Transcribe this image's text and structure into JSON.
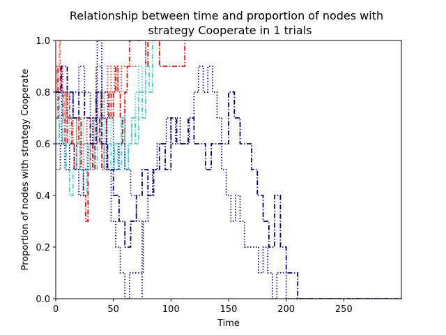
{
  "chart_data": {
    "type": "line",
    "title_line1": "Relationship between time and proportion of nodes with",
    "title_line2": "strategy Cooperate in 1 trials",
    "xlabel": "Time",
    "ylabel": "Proportion of nodes with strategy Cooperate",
    "xlim": [
      0,
      300
    ],
    "ylim": [
      0.0,
      1.0
    ],
    "xticks": [
      0,
      50,
      100,
      150,
      200,
      250
    ],
    "yticks": [
      0.0,
      0.2,
      0.4,
      0.6,
      0.8,
      1.0
    ],
    "xtick_labels": [
      "0",
      "50",
      "100",
      "150",
      "200",
      "250"
    ],
    "ytick_labels": [
      "0.0",
      "0.2",
      "0.4",
      "0.6",
      "0.8",
      "1.0"
    ],
    "grid": false,
    "legend": "none",
    "series": [
      {
        "color": "#ff0000",
        "style": "dashdot",
        "x": [
          0,
          2,
          4,
          6,
          8,
          10,
          12,
          14,
          16,
          18,
          20,
          22,
          24,
          26,
          28,
          30,
          32,
          34,
          36,
          38,
          40,
          42,
          44,
          46,
          48,
          50,
          52,
          54,
          56,
          58,
          60,
          62,
          64,
          66,
          68,
          70,
          72,
          74,
          76,
          78,
          80,
          85,
          90,
          95,
          100,
          105,
          110,
          112
        ],
        "y": [
          0.7,
          0.9,
          0.8,
          0.7,
          0.6,
          0.8,
          0.7,
          0.6,
          0.5,
          0.6,
          0.7,
          0.5,
          0.4,
          0.3,
          0.5,
          0.6,
          0.5,
          0.6,
          0.7,
          0.6,
          0.5,
          0.6,
          0.7,
          0.8,
          0.7,
          0.8,
          0.9,
          0.8,
          0.7,
          0.6,
          0.8,
          0.9,
          1.0,
          1.0,
          1.0,
          1.0,
          1.0,
          1.0,
          1.0,
          0.9,
          1.0,
          1.0,
          0.9,
          0.9,
          0.9,
          0.9,
          0.9,
          1.0
        ]
      },
      {
        "color": "#ff2222",
        "style": "dotted",
        "x": [
          0,
          3,
          6,
          9,
          12,
          15,
          18,
          21,
          24,
          27,
          30,
          33,
          36,
          39,
          42,
          45,
          48,
          51,
          54,
          57,
          60,
          63,
          66,
          69,
          72,
          75
        ],
        "y": [
          0.9,
          0.9,
          0.8,
          0.7,
          0.6,
          0.7,
          0.6,
          0.5,
          0.6,
          0.7,
          0.6,
          0.7,
          0.8,
          0.7,
          0.8,
          0.9,
          0.8,
          0.9,
          0.8,
          0.9,
          0.9,
          0.9,
          0.9,
          0.9,
          0.9,
          0.9
        ]
      },
      {
        "color": "#ff8877",
        "style": "dashdot",
        "x": [
          0,
          1,
          2,
          3,
          4,
          5,
          6,
          7,
          8,
          9,
          10
        ],
        "y": [
          0.8,
          0.9,
          0.9,
          1.0,
          0.9,
          0.8,
          0.8,
          0.7,
          0.8,
          0.7,
          0.8
        ]
      },
      {
        "color": "#40d0d0",
        "style": "dashdot",
        "x": [
          0,
          3,
          6,
          9,
          12,
          15,
          18,
          21,
          24,
          27,
          30,
          33,
          36,
          39,
          42,
          45,
          48,
          51,
          54,
          57,
          60,
          63,
          66,
          69,
          72,
          75,
          78,
          81,
          84
        ],
        "y": [
          0.6,
          0.8,
          0.6,
          0.5,
          0.4,
          0.5,
          0.6,
          0.5,
          0.4,
          0.5,
          0.6,
          0.5,
          0.7,
          0.6,
          0.5,
          0.6,
          0.5,
          0.6,
          0.5,
          0.7,
          0.5,
          0.6,
          0.7,
          0.6,
          0.8,
          0.7,
          0.9,
          0.8,
          1.0
        ]
      },
      {
        "color": "#40d0d0",
        "style": "dotted",
        "x": [
          0,
          3,
          6,
          9,
          12,
          15,
          18,
          21,
          24,
          27,
          30,
          33,
          36,
          39,
          42,
          45,
          48,
          51,
          54,
          57,
          60,
          63,
          66,
          69,
          72,
          75,
          78,
          81
        ],
        "y": [
          0.7,
          0.6,
          0.7,
          0.6,
          0.8,
          0.7,
          0.6,
          0.7,
          0.6,
          0.5,
          0.6,
          0.7,
          0.8,
          0.7,
          0.6,
          0.7,
          0.6,
          0.5,
          0.6,
          0.7,
          0.5,
          0.6,
          0.7,
          0.8,
          0.9,
          0.8,
          1.0,
          1.0
        ]
      },
      {
        "color": "#00008b",
        "style": "dashdot",
        "x": [
          0,
          5,
          10,
          15,
          20,
          25,
          30,
          35,
          40,
          45,
          50,
          55,
          60,
          65,
          70,
          75,
          80,
          85,
          90,
          95,
          100,
          105,
          110,
          115,
          120,
          125,
          130,
          135,
          140,
          145,
          150,
          155,
          160,
          165,
          170,
          175,
          180,
          185,
          190,
          195,
          200,
          205,
          210,
          215,
          230,
          260,
          300
        ],
        "y": [
          0.8,
          0.9,
          0.8,
          0.7,
          0.8,
          0.7,
          0.6,
          0.8,
          0.6,
          0.5,
          0.4,
          0.3,
          0.2,
          0.3,
          0.4,
          0.5,
          0.4,
          0.5,
          0.6,
          0.5,
          0.7,
          0.6,
          0.6,
          0.7,
          0.6,
          0.6,
          0.5,
          0.6,
          0.6,
          0.6,
          0.8,
          0.7,
          0.6,
          0.6,
          0.5,
          0.4,
          0.3,
          0.2,
          0.4,
          0.2,
          0.1,
          0.1,
          0.0,
          0.0,
          0.0,
          0.0,
          0.0
        ]
      },
      {
        "color": "#00008b",
        "style": "dotted",
        "x": [
          0,
          4,
          8,
          12,
          16,
          20,
          24,
          28,
          32,
          36,
          40,
          44,
          48,
          52,
          56,
          60,
          64,
          68,
          72,
          76,
          80,
          84,
          88,
          92,
          96,
          100,
          104,
          108,
          112,
          116,
          120,
          124,
          128,
          132,
          136,
          140,
          144,
          148,
          152,
          156,
          160,
          164,
          168,
          172,
          176,
          180,
          184,
          188,
          192,
          196,
          200,
          210,
          240,
          300
        ],
        "y": [
          0.5,
          0.6,
          0.5,
          0.6,
          0.5,
          0.4,
          0.5,
          0.6,
          0.7,
          1.0,
          0.7,
          0.5,
          0.3,
          0.2,
          0.1,
          0.0,
          0.1,
          0.1,
          0.1,
          0.3,
          0.4,
          0.5,
          0.6,
          0.6,
          0.7,
          0.6,
          0.7,
          0.6,
          0.6,
          0.7,
          0.8,
          0.9,
          0.8,
          0.9,
          0.8,
          0.7,
          0.5,
          0.4,
          0.3,
          0.4,
          0.3,
          0.2,
          0.2,
          0.2,
          0.1,
          0.2,
          0.1,
          0.0,
          0.1,
          0.1,
          0.0,
          0.0,
          0.0,
          0.0
        ]
      },
      {
        "color": "#1c1ca0",
        "style": "dotted",
        "x": [
          0,
          5,
          10,
          15,
          20,
          25,
          30,
          35,
          40,
          45,
          50,
          55,
          60,
          65,
          70,
          75
        ],
        "y": [
          0.6,
          0.8,
          0.7,
          0.8,
          0.9,
          0.8,
          0.7,
          0.9,
          0.8,
          0.7,
          0.5,
          0.6,
          0.5,
          0.4,
          0.3,
          0.0
        ]
      }
    ]
  }
}
